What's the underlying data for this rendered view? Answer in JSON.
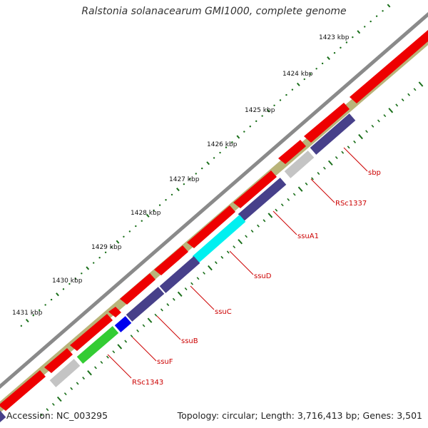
{
  "title": "Ralstonia solanacearum GMI1000, complete genome",
  "footer": {
    "accession": "Accession: NC_003295",
    "summary": "Topology: circular; Length: 3,716,413 bp; Genes: 3,501"
  },
  "ticks": [
    "1423 kbp",
    "1424 kbp",
    "1425 kbp",
    "1426 kbp",
    "1427 kbp",
    "1428 kbp",
    "1429 kbp",
    "1430 kbp",
    "1431 kbp"
  ],
  "gene_labels": [
    "sbp",
    "RSc1337",
    "ssuA1",
    "ssuD",
    "ssuC",
    "ssuB",
    "ssuF",
    "RSc1343"
  ],
  "colors": {
    "backbone": "#8a8a8a",
    "cds": "#ee0000",
    "tick": "#1a6f1a",
    "label": "#cc0000",
    "gc_skew": "#b9b47a",
    "cog_purple": "#47408a",
    "cog_grey": "#c4c4c4",
    "cog_cyan": "#00f0f0",
    "cog_green": "#33cc33",
    "cog_blue": "#0000ee"
  }
}
